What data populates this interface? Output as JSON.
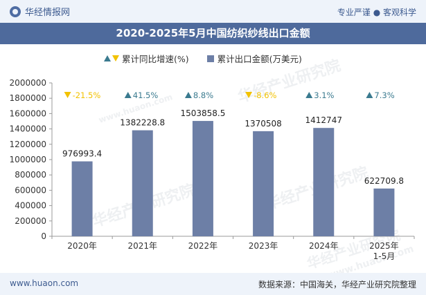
{
  "header": {
    "brand": "华经情报网",
    "tagline": "专业严谨 ● 客观科学"
  },
  "watermarks": {
    "text": "华经产业研究院",
    "url": "www.huaon.com"
  },
  "footer": {
    "url": "www.huaon.com",
    "source": "数据来源：中国海关，华经产业研究院整理"
  },
  "colors": {
    "bar": "#6d7fa6",
    "growth_up": "#3a7a8f",
    "growth_down": "#f2c200",
    "title_bg": "#4e6a9c"
  },
  "chart_data": {
    "type": "bar",
    "title": "2020-2025年5月中国纺织纱线出口金额",
    "categories": [
      "2020年",
      "2021年",
      "2022年",
      "2023年",
      "2024年",
      "2025年\n1-5月"
    ],
    "series": [
      {
        "name": "累计出口金额(万美元)",
        "values": [
          976993.4,
          1382228.8,
          1503858.5,
          1370508,
          1412747,
          622709.8
        ],
        "labels": [
          "976993.4",
          "1382228.8",
          "1503858.5",
          "1370508",
          "1412747",
          "622709.8"
        ]
      },
      {
        "name": "累计同比增速(%)",
        "values": [
          -21.5,
          41.5,
          8.8,
          -8.6,
          3.1,
          7.3
        ],
        "labels": [
          "-21.5%",
          "41.5%",
          "8.8%",
          "-8.6%",
          "3.1%",
          "7.3%"
        ]
      }
    ],
    "yticks": [
      "0",
      "200000",
      "400000",
      "600000",
      "800000",
      "1000000",
      "1200000",
      "1400000",
      "1600000",
      "1800000",
      "2000000"
    ],
    "ylim": [
      0,
      2000000
    ],
    "legend_position": "top",
    "grid": false
  }
}
